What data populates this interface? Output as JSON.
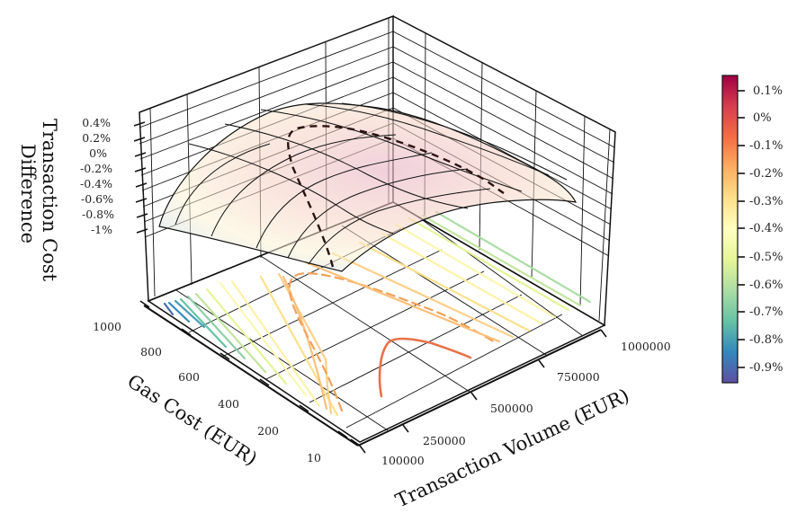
{
  "chart_data": {
    "type": "surface3d",
    "title": "",
    "xlabel": "Transaction Volume (EUR)",
    "ylabel": "Gas Cost (EUR)",
    "zlabel": "Transaction Cost Difference",
    "x_ticks": [
      "100000",
      "250000",
      "500000",
      "750000",
      "1000000"
    ],
    "y_ticks": [
      "10",
      "200",
      "400",
      "600",
      "800",
      "1000"
    ],
    "z_ticks": [
      "0.4%",
      "0.2%",
      "0%",
      "-0.2%",
      "-0.4%",
      "-0.6%",
      "-0.8%",
      "-1%"
    ],
    "xlim": [
      100000,
      1000000
    ],
    "ylim": [
      10,
      1000
    ],
    "zlim": [
      -1.0,
      0.4
    ],
    "colormap": "Spectral_r",
    "colorbar": {
      "ticks": [
        "0.1%",
        "0%",
        "-0.1%",
        "-0.2%",
        "-0.3%",
        "-0.4%",
        "-0.5%",
        "-0.6%",
        "-0.7%",
        "-0.8%",
        "-0.9%"
      ],
      "range": [
        -0.95,
        0.15
      ]
    },
    "surface_description": "Dome-shaped surface peaking around ~0.2% near mid/low gas cost and mid transaction volume, falling to ~-0.9% at high gas cost with low volume",
    "contours_floor": {
      "levels_solid": [
        -0.9,
        -0.8,
        -0.7,
        -0.6,
        -0.5,
        -0.4,
        -0.3,
        -0.2,
        -0.1
      ],
      "levels_dashed": [
        0.0
      ],
      "highlighted_zero_contour_on_surface": true
    },
    "grid": true,
    "legend": null
  },
  "colors": {
    "cmap_high": "#9e0142",
    "cmap_mid": "#ffffbf",
    "cmap_low": "#5e4fa2",
    "zero_contour_surface": "#2b1111",
    "zero_contour_floor": "#f1a15a",
    "peak_contour_floor": "#e8704a"
  }
}
